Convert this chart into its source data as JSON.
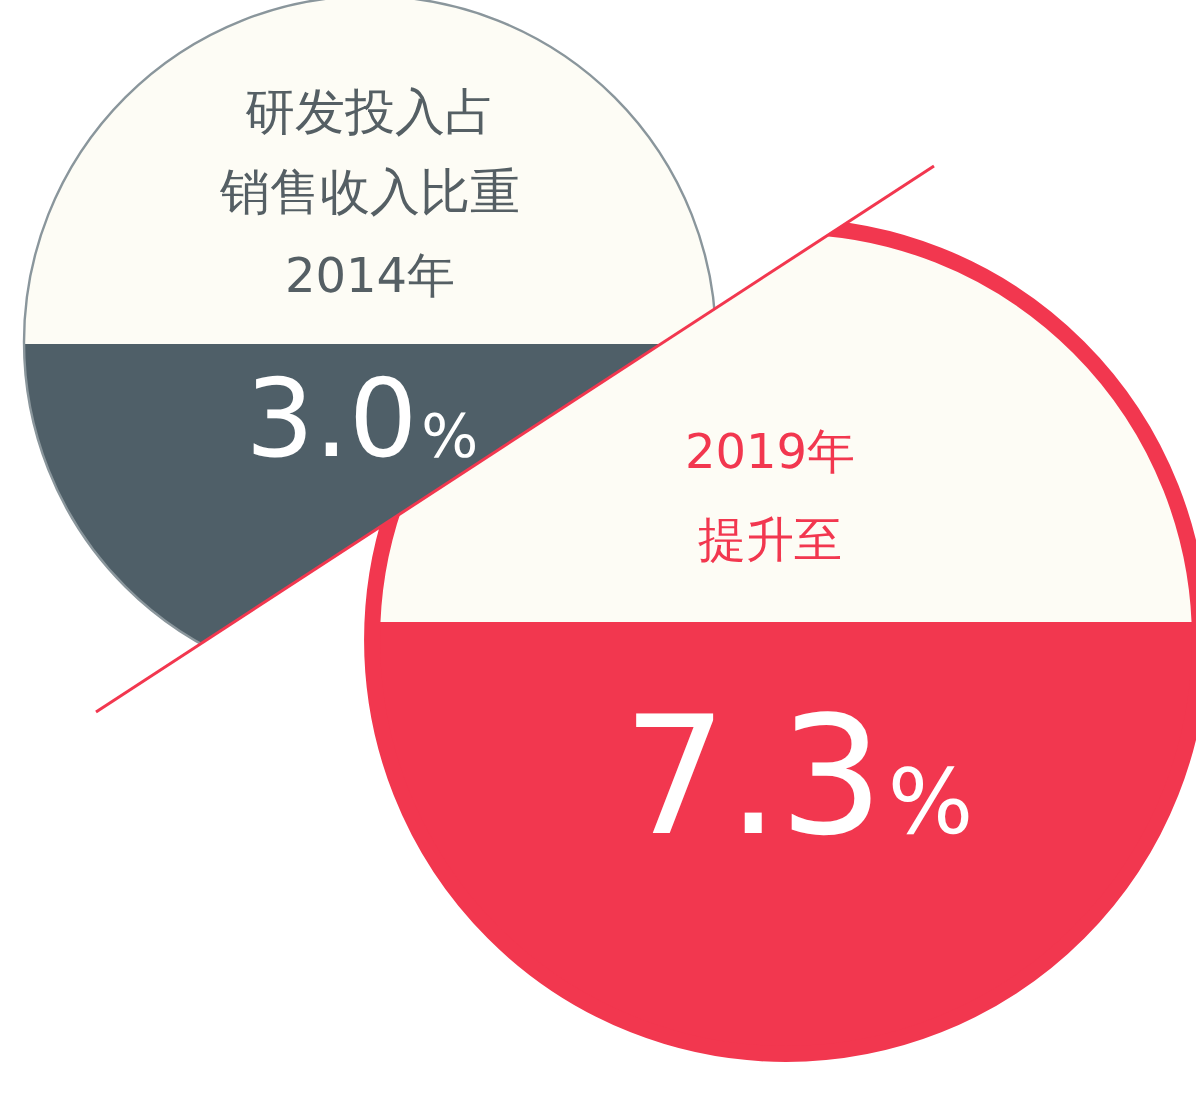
{
  "chart_data": {
    "type": "other",
    "title": "研发投入占销售收入比重",
    "categories": [
      "2014年",
      "2019年"
    ],
    "values": [
      3.0,
      7.3
    ],
    "value_labels": [
      "3.0%",
      "7.3%"
    ],
    "annotations": [
      "提升至"
    ]
  }
}
